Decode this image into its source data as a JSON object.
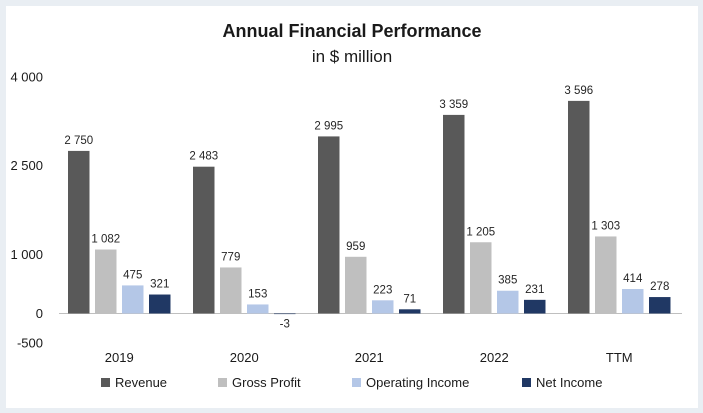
{
  "chart_data": {
    "type": "bar",
    "title": "Annual Financial Performance",
    "subtitle": "in $ million",
    "categories": [
      "2019",
      "2020",
      "2021",
      "2022",
      "TTM"
    ],
    "series": [
      {
        "name": "Revenue",
        "color": "#595959",
        "values": [
          2750,
          2483,
          2995,
          3359,
          3596
        ],
        "labels": [
          "2 750",
          "2 483",
          "2 995",
          "3 359",
          "3 596"
        ]
      },
      {
        "name": "Gross Profit",
        "color": "#bfbfbf",
        "values": [
          1082,
          779,
          959,
          1205,
          1303
        ],
        "labels": [
          "1 082",
          "779",
          "959",
          "1 205",
          "1 303"
        ]
      },
      {
        "name": "Operating Income",
        "color": "#b4c7e7",
        "values": [
          475,
          153,
          223,
          385,
          414
        ],
        "labels": [
          "475",
          "153",
          "223",
          "385",
          "414"
        ]
      },
      {
        "name": "Net Income",
        "color": "#203864",
        "values": [
          321,
          -3,
          71,
          231,
          278
        ],
        "labels": [
          "321",
          "-3",
          "71",
          "231",
          "278"
        ]
      }
    ],
    "yticks": [
      -500,
      0,
      1000,
      2500,
      4000
    ],
    "ytick_labels": [
      "-500",
      "0",
      "1 000",
      "2 500",
      "4 000"
    ],
    "ylim": [
      -500,
      4000
    ],
    "legend_position": "bottom",
    "grid": false
  }
}
